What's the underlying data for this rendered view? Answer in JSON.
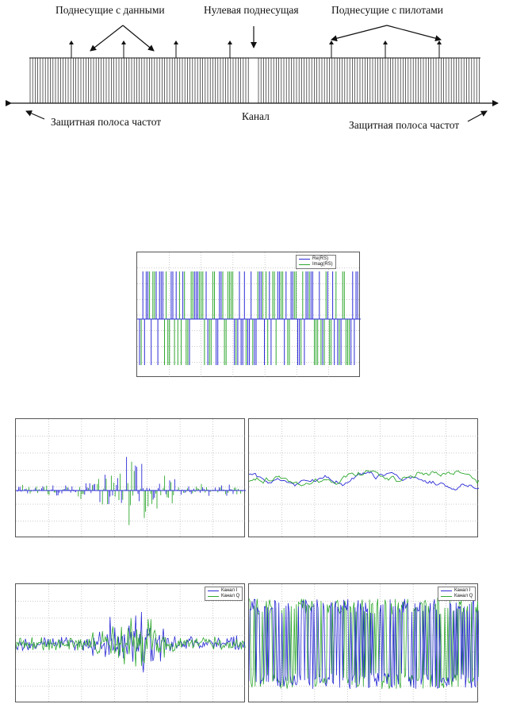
{
  "spectrum": {
    "data_subcarriers_label": "Поднесущие с данными",
    "null_subcarrier_label": "Нулевая поднесущая",
    "pilot_subcarriers_label": "Поднесущие с пилотами",
    "channel_label": "Канал",
    "guard_band_left_label": "Защитная полоса частот",
    "guard_band_right_label": "Защитная полоса частот"
  },
  "plots": {
    "rs_plot": {
      "legend": [
        "Re(RS)",
        "Imag(RS)"
      ]
    },
    "iq_plot_left": {
      "legend": [
        "Канал I",
        "Канал Q"
      ]
    },
    "iq_plot_right": {
      "legend": [
        "Канал I",
        "Канал Q"
      ]
    }
  },
  "colors": {
    "series_blue": "#2b2bd6",
    "series_green": "#2fa82f",
    "axis": "#333333",
    "grid": "#999999"
  }
}
